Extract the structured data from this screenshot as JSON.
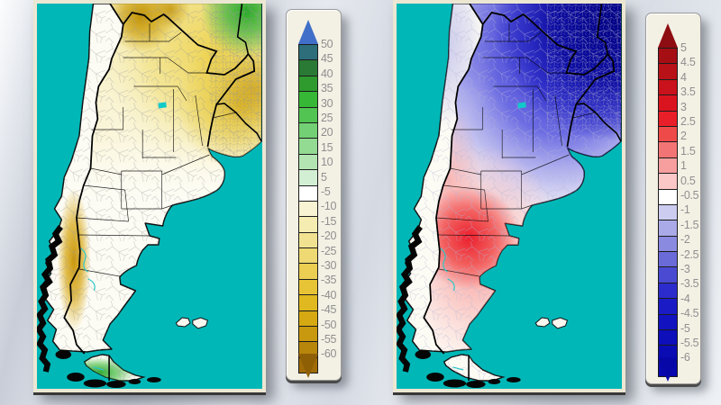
{
  "colors": {
    "ocean": "#00b7b7",
    "land": "#fdfcf4",
    "frame": "#ece7d3",
    "panel_bg": "#f3f0e4",
    "label": "#8f8f8f",
    "left_map": {
      "nw_spot": "#c29206",
      "north_wash": "#eccd3c",
      "ne_green": "#22aa22",
      "east_gold": "#deb61c",
      "andes_band": "#c8960c",
      "south_green": "#28aa28"
    },
    "right_map": {
      "navy": "#000085",
      "blue": "#2828d2",
      "red": "#eb1e2d",
      "pink": "#f57878",
      "lavender": "#9696e1"
    }
  },
  "left_colorbar": {
    "arrow_top_color": "#3f6fc8",
    "arrow_bottom_color": "#8f5f06",
    "labels": [
      "50",
      "45",
      "40",
      "35",
      "30",
      "25",
      "20",
      "15",
      "10",
      "5",
      "-5",
      "-10",
      "-15",
      "-20",
      "-25",
      "-30",
      "-35",
      "-40",
      "-45",
      "-50",
      "-55",
      "-60"
    ],
    "cells": [
      "#2e6e7a",
      "#2a7a35",
      "#2f9b2f",
      "#36b836",
      "#52c452",
      "#74d074",
      "#93da93",
      "#b3e5b3",
      "#d3efd3",
      "#ffffff",
      "#f8f3d2",
      "#f5ecb2",
      "#f1e292",
      "#eed972",
      "#ebce52",
      "#e7c436",
      "#e0b81f",
      "#d6a913",
      "#c8990e",
      "#b8860b",
      "#a06c08"
    ]
  },
  "right_colorbar": {
    "arrow_top_color": "#8e0d12",
    "arrow_bottom_color": "#0707a8",
    "labels": [
      "5",
      "4.5",
      "4",
      "3.5",
      "3",
      "2.5",
      "2",
      "1.5",
      "1",
      "0.5",
      "-0.5",
      "-1",
      "-1.5",
      "-2",
      "-2.5",
      "-3",
      "-3.5",
      "-4",
      "-4.5",
      "-5",
      "-5.5",
      "-6"
    ],
    "cells": [
      "#a50f14",
      "#b81118",
      "#c9121b",
      "#da141f",
      "#e81e28",
      "#ee4a4a",
      "#f37474",
      "#f79e9e",
      "#fbc7c7",
      "#ffffff",
      "#ccccf0",
      "#aaaae8",
      "#8a8ae0",
      "#6a6ad8",
      "#4a4ad2",
      "#2c2ccc",
      "#1b1bc6",
      "#1212c0",
      "#0e0eba",
      "#0b0bb4",
      "#0808ae"
    ]
  }
}
